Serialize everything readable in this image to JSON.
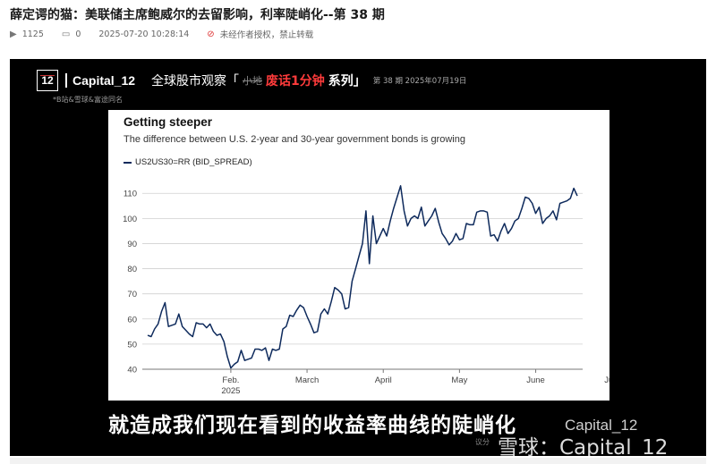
{
  "page": {
    "title": "薛定谔的猫：美联储主席鲍威尔的去留影响，利率陡峭化--第 38 期",
    "views": "1125",
    "comments": "0",
    "timestamp": "2025-07-20 10:28:14",
    "copyright_notice": "未经作者授权，禁止转载"
  },
  "video": {
    "logo_text": "12",
    "brand": "Capital_12",
    "sub_tag": "*B站&雪球&富途同名",
    "header_prefix": "全球股市观察「",
    "header_scribble": "小地",
    "header_highlight": "废话1分钟",
    "header_series": "系列」",
    "header_issue": "第 38 期 2025年07月19日",
    "caption": "就造成我们现在看到的收益率曲线的陡峭化",
    "watermark_brand": "Capital_12",
    "watermark_xueqiu": "雪球：Capital_12",
    "watermark_small": "议分"
  },
  "chart_data": {
    "type": "line",
    "title": "Getting steeper",
    "subtitle": "The difference between U.S. 2-year and 30-year government bonds is growing",
    "legend": [
      {
        "name": "US2US30=RR (BID_SPREAD)",
        "color": "#0e2a5c"
      }
    ],
    "x_tick_labels": [
      "Feb.",
      "March",
      "April",
      "May",
      "June",
      "July"
    ],
    "x_tick_sublabels": [
      "2025",
      "",
      "",
      "",
      "",
      ""
    ],
    "y_ticks": [
      40,
      50,
      60,
      70,
      80,
      90,
      100,
      110
    ],
    "ylim": [
      40,
      114
    ],
    "grid": true,
    "series": [
      {
        "name": "US2US30=RR (BID_SPREAD)",
        "points": [
          [
            0,
            53.5
          ],
          [
            1,
            53
          ],
          [
            2,
            56
          ],
          [
            3,
            58
          ],
          [
            4,
            63
          ],
          [
            5,
            66.5
          ],
          [
            6,
            57
          ],
          [
            7,
            57.5
          ],
          [
            8,
            58
          ],
          [
            9,
            62
          ],
          [
            10,
            57
          ],
          [
            11,
            55.5
          ],
          [
            12,
            54
          ],
          [
            13,
            53
          ],
          [
            14,
            58.5
          ],
          [
            15,
            58
          ],
          [
            16,
            58
          ],
          [
            17,
            56.5
          ],
          [
            18,
            58
          ],
          [
            19,
            55
          ],
          [
            20,
            53.5
          ],
          [
            21,
            54
          ],
          [
            22,
            51
          ],
          [
            23,
            45
          ],
          [
            24,
            40.5
          ],
          [
            25,
            42
          ],
          [
            26,
            43
          ],
          [
            27,
            47.5
          ],
          [
            28,
            43.5
          ],
          [
            29,
            44
          ],
          [
            30,
            44.5
          ],
          [
            31,
            48
          ],
          [
            32,
            48
          ],
          [
            33,
            47.5
          ],
          [
            34,
            48.5
          ],
          [
            35,
            43.5
          ],
          [
            36,
            48
          ],
          [
            37,
            47.5
          ],
          [
            38,
            48
          ],
          [
            39,
            56
          ],
          [
            40,
            57
          ],
          [
            41,
            61.5
          ],
          [
            42,
            61
          ],
          [
            43,
            63.5
          ],
          [
            44,
            65.5
          ],
          [
            45,
            64.5
          ],
          [
            46,
            61
          ],
          [
            47,
            58
          ],
          [
            48,
            54.5
          ],
          [
            49,
            55
          ],
          [
            50,
            62
          ],
          [
            51,
            64
          ],
          [
            52,
            62
          ],
          [
            53,
            67
          ],
          [
            54,
            72.5
          ],
          [
            55,
            71.5
          ],
          [
            56,
            70
          ],
          [
            57,
            64
          ],
          [
            58,
            64.5
          ],
          [
            59,
            75
          ],
          [
            60,
            80
          ],
          [
            61,
            85
          ],
          [
            62,
            90
          ],
          [
            63,
            103
          ],
          [
            64,
            82
          ],
          [
            65,
            101
          ],
          [
            66,
            90
          ],
          [
            67,
            93
          ],
          [
            68,
            96
          ],
          [
            69,
            93
          ],
          [
            70,
            99
          ],
          [
            71,
            104
          ],
          [
            72,
            108.5
          ],
          [
            73,
            113
          ],
          [
            74,
            103
          ],
          [
            75,
            97
          ],
          [
            76,
            100
          ],
          [
            77,
            101
          ],
          [
            78,
            100
          ],
          [
            79,
            104.5
          ],
          [
            80,
            97
          ],
          [
            81,
            99
          ],
          [
            82,
            101
          ],
          [
            83,
            104
          ],
          [
            84,
            98.5
          ],
          [
            85,
            94
          ],
          [
            86,
            92
          ],
          [
            87,
            89.5
          ],
          [
            88,
            91
          ],
          [
            89,
            94
          ],
          [
            90,
            91.5
          ],
          [
            91,
            92
          ],
          [
            92,
            98
          ],
          [
            93,
            97.5
          ],
          [
            94,
            97.5
          ],
          [
            95,
            102.5
          ],
          [
            96,
            103
          ],
          [
            97,
            103
          ],
          [
            98,
            102.5
          ],
          [
            99,
            93
          ],
          [
            100,
            93.5
          ],
          [
            101,
            91
          ],
          [
            102,
            95
          ],
          [
            103,
            98
          ],
          [
            104,
            94
          ],
          [
            105,
            96
          ],
          [
            106,
            99
          ],
          [
            107,
            100
          ],
          [
            108,
            104
          ],
          [
            109,
            108.5
          ],
          [
            110,
            108
          ],
          [
            111,
            106
          ],
          [
            112,
            102
          ],
          [
            113,
            104.5
          ],
          [
            114,
            98
          ],
          [
            115,
            100
          ],
          [
            116,
            101
          ],
          [
            117,
            103
          ],
          [
            118,
            99.5
          ],
          [
            119,
            106
          ],
          [
            120,
            106.5
          ],
          [
            121,
            107
          ],
          [
            122,
            108
          ],
          [
            123,
            112
          ],
          [
            124,
            109
          ]
        ]
      }
    ]
  }
}
